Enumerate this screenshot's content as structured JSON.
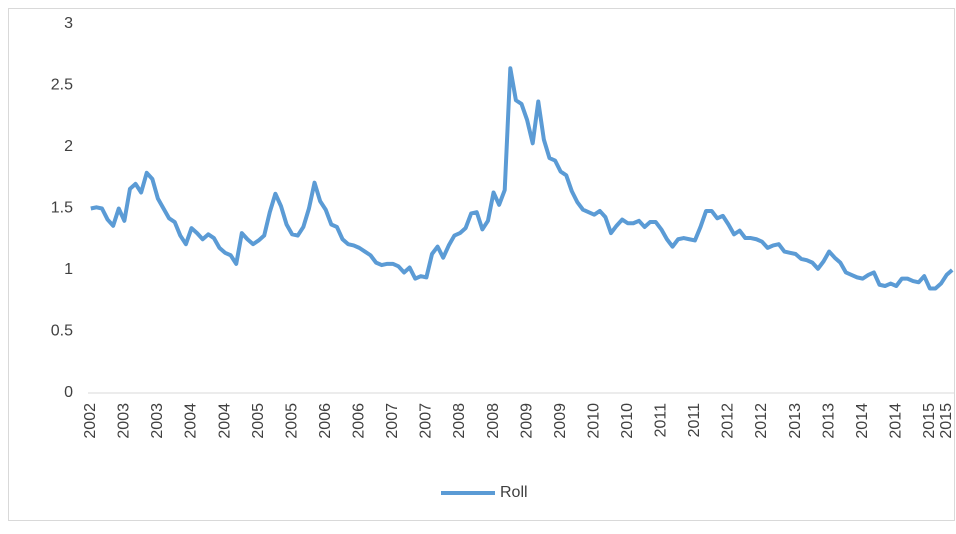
{
  "chart_data": {
    "type": "line",
    "categories": [
      "2002",
      null,
      null,
      null,
      null,
      null,
      "2003",
      null,
      null,
      null,
      null,
      null,
      "2003",
      null,
      null,
      null,
      null,
      null,
      "2004",
      null,
      null,
      null,
      null,
      null,
      "2004",
      null,
      null,
      null,
      null,
      null,
      "2005",
      null,
      null,
      null,
      null,
      null,
      "2005",
      null,
      null,
      null,
      null,
      null,
      "2006",
      null,
      null,
      null,
      null,
      null,
      "2006",
      null,
      null,
      null,
      null,
      null,
      "2007",
      null,
      null,
      null,
      null,
      null,
      "2007",
      null,
      null,
      null,
      null,
      null,
      "2008",
      null,
      null,
      null,
      null,
      null,
      "2008",
      null,
      null,
      null,
      null,
      null,
      "2009",
      null,
      null,
      null,
      null,
      null,
      "2009",
      null,
      null,
      null,
      null,
      null,
      "2010",
      null,
      null,
      null,
      null,
      null,
      "2010",
      null,
      null,
      null,
      null,
      null,
      "2011",
      null,
      null,
      null,
      null,
      null,
      "2011",
      null,
      null,
      null,
      null,
      null,
      "2012",
      null,
      null,
      null,
      null,
      null,
      "2012",
      null,
      null,
      null,
      null,
      null,
      "2013",
      null,
      null,
      null,
      null,
      null,
      "2013",
      null,
      null,
      null,
      null,
      null,
      "2014",
      null,
      null,
      null,
      null,
      null,
      "2014",
      null,
      null,
      null,
      null,
      null,
      "2015",
      null,
      null,
      "2015",
      null
    ],
    "series": [
      {
        "name": "Roll",
        "color": "#5b9bd5",
        "values": [
          1.5,
          1.51,
          1.5,
          1.41,
          1.36,
          1.5,
          1.4,
          1.66,
          1.7,
          1.63,
          1.79,
          1.74,
          1.58,
          1.5,
          1.42,
          1.39,
          1.28,
          1.21,
          1.34,
          1.3,
          1.25,
          1.29,
          1.26,
          1.18,
          1.14,
          1.12,
          1.05,
          1.3,
          1.25,
          1.21,
          1.24,
          1.28,
          1.47,
          1.62,
          1.52,
          1.37,
          1.29,
          1.28,
          1.35,
          1.5,
          1.71,
          1.56,
          1.49,
          1.37,
          1.35,
          1.25,
          1.21,
          1.2,
          1.18,
          1.15,
          1.12,
          1.06,
          1.04,
          1.05,
          1.05,
          1.03,
          0.98,
          1.02,
          0.93,
          0.95,
          0.94,
          1.13,
          1.19,
          1.1,
          1.2,
          1.28,
          1.3,
          1.34,
          1.46,
          1.47,
          1.33,
          1.4,
          1.63,
          1.53,
          1.65,
          2.64,
          2.38,
          2.35,
          2.22,
          2.03,
          2.37,
          2.06,
          1.91,
          1.89,
          1.8,
          1.77,
          1.64,
          1.55,
          1.49,
          1.47,
          1.45,
          1.48,
          1.43,
          1.3,
          1.36,
          1.41,
          1.38,
          1.38,
          1.4,
          1.35,
          1.39,
          1.39,
          1.33,
          1.25,
          1.19,
          1.25,
          1.26,
          1.25,
          1.24,
          1.35,
          1.48,
          1.48,
          1.42,
          1.44,
          1.37,
          1.29,
          1.32,
          1.26,
          1.26,
          1.25,
          1.23,
          1.18,
          1.2,
          1.21,
          1.15,
          1.14,
          1.13,
          1.09,
          1.08,
          1.06,
          1.01,
          1.07,
          1.15,
          1.1,
          1.06,
          0.98,
          0.96,
          0.94,
          0.93,
          0.96,
          0.98,
          0.88,
          0.87,
          0.89,
          0.87,
          0.93,
          0.93,
          0.91,
          0.9,
          0.95,
          0.85,
          0.85,
          0.89,
          0.96,
          1.0
        ]
      }
    ],
    "ylim": [
      0,
      3
    ],
    "yticks": [
      0,
      0.5,
      1,
      1.5,
      2,
      2.5,
      3
    ],
    "grid": false,
    "legend": "bottom"
  }
}
